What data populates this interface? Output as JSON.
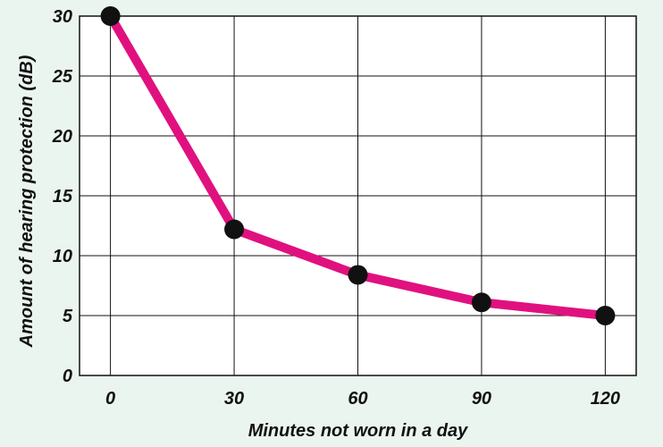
{
  "chart_data": {
    "type": "line",
    "title": "",
    "xlabel": "Minutes not worn in a day",
    "ylabel": "Amount of hearing protection (dB)",
    "x": [
      0,
      30,
      60,
      90,
      120
    ],
    "series": [
      {
        "values": [
          30,
          12.2,
          8.4,
          6.1,
          5
        ]
      }
    ],
    "x_ticks": [
      "0",
      "30",
      "60",
      "90",
      "120"
    ],
    "y_ticks": [
      "0",
      "5",
      "10",
      "15",
      "20",
      "25",
      "30"
    ],
    "xlim": [
      -7.5,
      127.5
    ],
    "ylim": [
      0,
      30
    ],
    "grid": true,
    "legend": "none",
    "colors": {
      "background": "#ebf5ef",
      "plot_background": "#ffffff",
      "line": "#e0117f",
      "marker": "#111111",
      "grid": "#111111"
    }
  }
}
